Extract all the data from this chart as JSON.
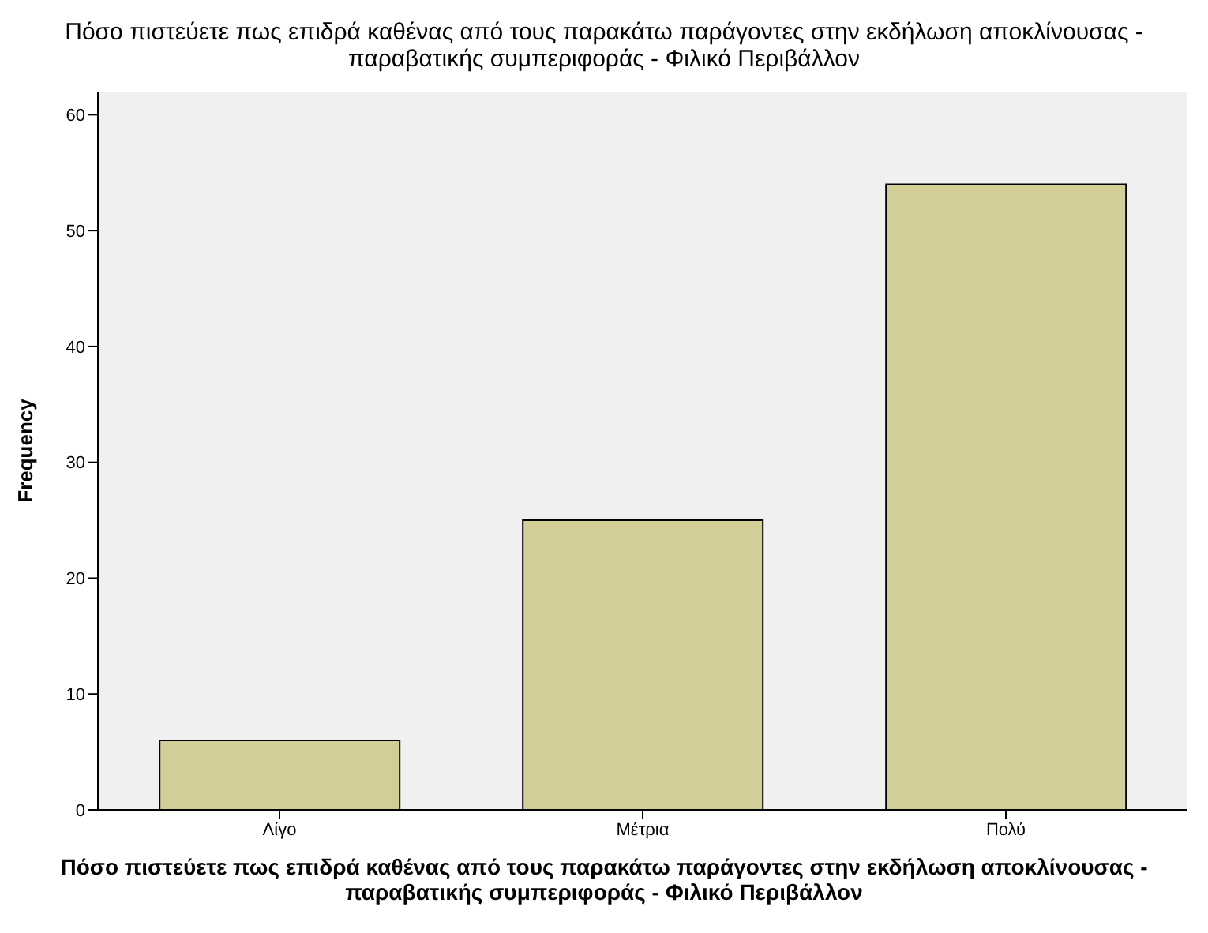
{
  "chart_data": {
    "type": "bar",
    "title": "Πόσο πιστεύετε πως επιδρά καθένας από τους παρακάτω παράγοντες στην εκδήλωση αποκλίνουσας - παραβατικής συμπεριφοράς - Φιλικό Περιβάλλον",
    "xlabel": "Πόσο πιστεύετε πως επιδρά καθένας από τους παρακάτω παράγοντες στην εκδήλωση αποκλίνουσας - παραβατικής συμπεριφοράς - Φιλικό Περιβάλλον",
    "ylabel": "Frequency",
    "categories": [
      "Λίγο",
      "Μέτρια",
      "Πολύ"
    ],
    "values": [
      6,
      25,
      54
    ],
    "color": "#d3ce97",
    "ylim": [
      0,
      62
    ],
    "yticks": [
      0,
      10,
      20,
      30,
      40,
      50,
      60
    ],
    "grid": false
  }
}
